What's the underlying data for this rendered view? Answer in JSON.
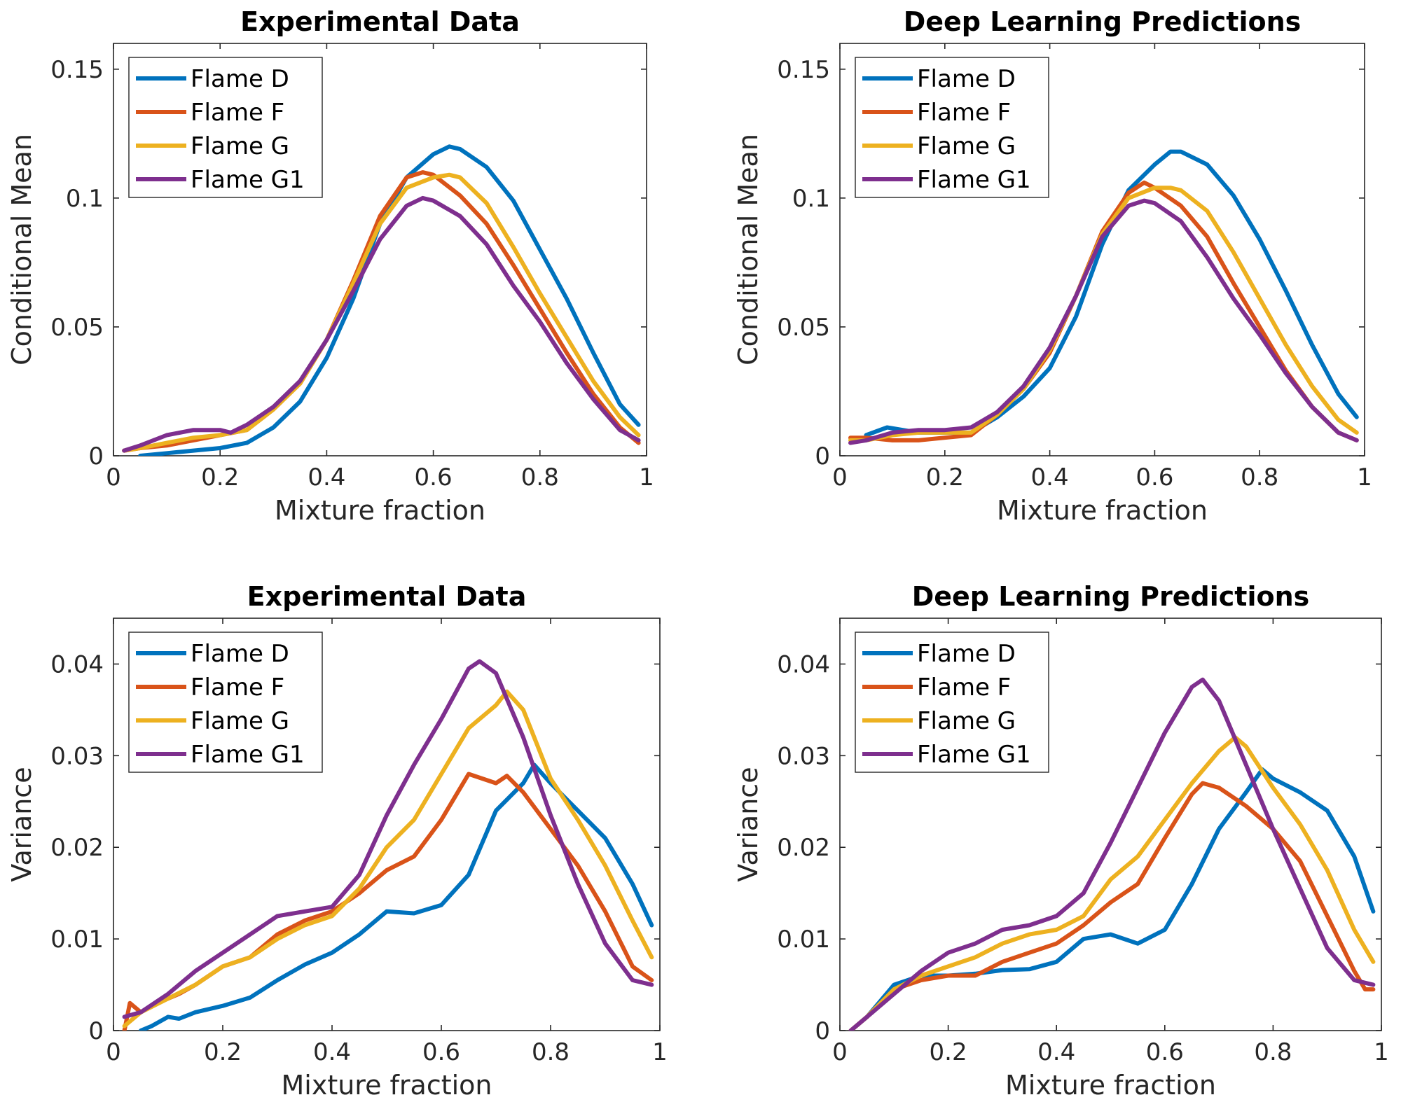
{
  "figure": {
    "colors": {
      "Flame D": "#0072BD",
      "Flame F": "#D95319",
      "Flame G": "#EDB120",
      "Flame G1": "#7E2F8E"
    }
  },
  "chart_data": [
    {
      "type": "line",
      "title": "Experimental Data",
      "xlabel": "Mixture fraction",
      "ylabel": "Conditional Mean",
      "xlim": [
        0,
        1
      ],
      "ylim": [
        0,
        0.16
      ],
      "xticks": [
        0,
        0.2,
        0.4,
        0.6,
        0.8,
        1
      ],
      "xtick_labels": [
        "0",
        "0.2",
        "0.4",
        "0.6",
        "0.8",
        "1"
      ],
      "yticks": [
        0,
        0.05,
        0.1,
        0.15
      ],
      "ytick_labels": [
        "0",
        "0.05",
        "0.1",
        "0.15"
      ],
      "legend": "top-left",
      "grid": false,
      "series": [
        {
          "name": "Flame D",
          "color": "#0072BD",
          "x": [
            0.05,
            0.1,
            0.15,
            0.2,
            0.25,
            0.3,
            0.35,
            0.4,
            0.45,
            0.5,
            0.55,
            0.6,
            0.63,
            0.65,
            0.7,
            0.75,
            0.8,
            0.85,
            0.9,
            0.95,
            0.985
          ],
          "y": [
            0.0,
            0.001,
            0.002,
            0.003,
            0.005,
            0.011,
            0.021,
            0.038,
            0.061,
            0.09,
            0.108,
            0.117,
            0.12,
            0.119,
            0.112,
            0.099,
            0.08,
            0.061,
            0.04,
            0.02,
            0.012
          ]
        },
        {
          "name": "Flame F",
          "color": "#D95319",
          "x": [
            0.02,
            0.05,
            0.1,
            0.15,
            0.2,
            0.25,
            0.3,
            0.35,
            0.4,
            0.45,
            0.5,
            0.55,
            0.58,
            0.6,
            0.65,
            0.7,
            0.75,
            0.8,
            0.85,
            0.9,
            0.95,
            0.985
          ],
          "y": [
            0.002,
            0.003,
            0.004,
            0.006,
            0.008,
            0.01,
            0.018,
            0.028,
            0.045,
            0.068,
            0.093,
            0.108,
            0.11,
            0.109,
            0.101,
            0.09,
            0.074,
            0.057,
            0.04,
            0.024,
            0.011,
            0.005
          ]
        },
        {
          "name": "Flame G",
          "color": "#EDB120",
          "x": [
            0.02,
            0.05,
            0.1,
            0.15,
            0.2,
            0.25,
            0.3,
            0.35,
            0.4,
            0.45,
            0.5,
            0.55,
            0.6,
            0.63,
            0.65,
            0.7,
            0.75,
            0.8,
            0.85,
            0.9,
            0.95,
            0.985
          ],
          "y": [
            0.002,
            0.003,
            0.005,
            0.007,
            0.008,
            0.01,
            0.018,
            0.028,
            0.045,
            0.067,
            0.09,
            0.104,
            0.108,
            0.109,
            0.108,
            0.098,
            0.081,
            0.063,
            0.046,
            0.029,
            0.015,
            0.008
          ]
        },
        {
          "name": "Flame G1",
          "color": "#7E2F8E",
          "x": [
            0.02,
            0.05,
            0.1,
            0.15,
            0.2,
            0.22,
            0.25,
            0.3,
            0.35,
            0.4,
            0.45,
            0.5,
            0.55,
            0.58,
            0.6,
            0.65,
            0.7,
            0.75,
            0.8,
            0.85,
            0.9,
            0.95,
            0.985
          ],
          "y": [
            0.002,
            0.004,
            0.008,
            0.01,
            0.01,
            0.009,
            0.012,
            0.019,
            0.029,
            0.045,
            0.064,
            0.084,
            0.097,
            0.1,
            0.099,
            0.093,
            0.082,
            0.066,
            0.052,
            0.036,
            0.022,
            0.01,
            0.006
          ]
        }
      ]
    },
    {
      "type": "line",
      "title": "Deep Learning Predictions",
      "xlabel": "Mixture fraction",
      "ylabel": "Conditional Mean",
      "xlim": [
        0,
        1
      ],
      "ylim": [
        0,
        0.16
      ],
      "xticks": [
        0,
        0.2,
        0.4,
        0.6,
        0.8,
        1
      ],
      "xtick_labels": [
        "0",
        "0.2",
        "0.4",
        "0.6",
        "0.8",
        "1"
      ],
      "yticks": [
        0,
        0.05,
        0.1,
        0.15
      ],
      "ytick_labels": [
        "0",
        "0.05",
        "0.1",
        "0.15"
      ],
      "legend": "top-left",
      "grid": false,
      "series": [
        {
          "name": "Flame D",
          "color": "#0072BD",
          "x": [
            0.05,
            0.09,
            0.15,
            0.2,
            0.25,
            0.3,
            0.35,
            0.4,
            0.45,
            0.5,
            0.55,
            0.6,
            0.63,
            0.65,
            0.7,
            0.75,
            0.8,
            0.85,
            0.9,
            0.95,
            0.985
          ],
          "y": [
            0.008,
            0.011,
            0.009,
            0.009,
            0.009,
            0.015,
            0.023,
            0.034,
            0.054,
            0.082,
            0.103,
            0.113,
            0.118,
            0.118,
            0.113,
            0.101,
            0.084,
            0.064,
            0.043,
            0.024,
            0.015
          ]
        },
        {
          "name": "Flame F",
          "color": "#D95319",
          "x": [
            0.02,
            0.05,
            0.1,
            0.15,
            0.2,
            0.25,
            0.3,
            0.35,
            0.4,
            0.45,
            0.5,
            0.55,
            0.58,
            0.6,
            0.65,
            0.7,
            0.75,
            0.8,
            0.85,
            0.9,
            0.95,
            0.985
          ],
          "y": [
            0.007,
            0.007,
            0.006,
            0.006,
            0.007,
            0.008,
            0.016,
            0.026,
            0.04,
            0.062,
            0.087,
            0.102,
            0.106,
            0.104,
            0.097,
            0.085,
            0.067,
            0.05,
            0.033,
            0.019,
            0.009,
            0.006
          ]
        },
        {
          "name": "Flame G",
          "color": "#EDB120",
          "x": [
            0.02,
            0.05,
            0.1,
            0.15,
            0.2,
            0.25,
            0.3,
            0.35,
            0.4,
            0.45,
            0.5,
            0.55,
            0.6,
            0.63,
            0.65,
            0.7,
            0.75,
            0.8,
            0.85,
            0.9,
            0.95,
            0.985
          ],
          "y": [
            0.006,
            0.006,
            0.008,
            0.009,
            0.009,
            0.009,
            0.016,
            0.026,
            0.041,
            0.062,
            0.086,
            0.1,
            0.104,
            0.104,
            0.103,
            0.095,
            0.079,
            0.061,
            0.043,
            0.027,
            0.014,
            0.009
          ]
        },
        {
          "name": "Flame G1",
          "color": "#7E2F8E",
          "x": [
            0.02,
            0.05,
            0.1,
            0.15,
            0.2,
            0.25,
            0.3,
            0.35,
            0.4,
            0.45,
            0.5,
            0.55,
            0.58,
            0.6,
            0.65,
            0.7,
            0.75,
            0.8,
            0.85,
            0.9,
            0.95,
            0.985
          ],
          "y": [
            0.005,
            0.006,
            0.009,
            0.01,
            0.01,
            0.011,
            0.017,
            0.027,
            0.042,
            0.062,
            0.085,
            0.097,
            0.099,
            0.098,
            0.091,
            0.077,
            0.061,
            0.047,
            0.032,
            0.019,
            0.009,
            0.006
          ]
        }
      ]
    },
    {
      "type": "line",
      "title": "Experimental Data",
      "xlabel": "Mixture fraction",
      "ylabel": "Variance",
      "xlim": [
        0,
        1
      ],
      "ylim": [
        0,
        0.045
      ],
      "xticks": [
        0,
        0.2,
        0.4,
        0.6,
        0.8,
        1
      ],
      "xtick_labels": [
        "0",
        "0.2",
        "0.4",
        "0.6",
        "0.8",
        "1"
      ],
      "yticks": [
        0,
        0.01,
        0.02,
        0.03,
        0.04
      ],
      "ytick_labels": [
        "0",
        "0.01",
        "0.02",
        "0.03",
        "0.04"
      ],
      "legend": "top-left",
      "grid": false,
      "series": [
        {
          "name": "Flame D",
          "color": "#0072BD",
          "x": [
            0.05,
            0.07,
            0.1,
            0.12,
            0.15,
            0.2,
            0.25,
            0.3,
            0.35,
            0.4,
            0.45,
            0.5,
            0.55,
            0.6,
            0.65,
            0.7,
            0.75,
            0.77,
            0.8,
            0.85,
            0.9,
            0.95,
            0.985
          ],
          "y": [
            0.0,
            0.0005,
            0.0015,
            0.0013,
            0.002,
            0.0027,
            0.0036,
            0.0055,
            0.0072,
            0.0085,
            0.0105,
            0.013,
            0.0128,
            0.0137,
            0.017,
            0.024,
            0.027,
            0.029,
            0.027,
            0.024,
            0.021,
            0.016,
            0.0115
          ]
        },
        {
          "name": "Flame F",
          "color": "#D95319",
          "x": [
            0.02,
            0.03,
            0.05,
            0.08,
            0.1,
            0.12,
            0.15,
            0.2,
            0.25,
            0.3,
            0.35,
            0.4,
            0.45,
            0.5,
            0.55,
            0.6,
            0.65,
            0.7,
            0.72,
            0.75,
            0.8,
            0.85,
            0.9,
            0.95,
            0.985
          ],
          "y": [
            0.0,
            0.003,
            0.002,
            0.003,
            0.0035,
            0.004,
            0.005,
            0.007,
            0.008,
            0.0105,
            0.012,
            0.013,
            0.015,
            0.0175,
            0.019,
            0.023,
            0.028,
            0.027,
            0.0278,
            0.026,
            0.022,
            0.018,
            0.013,
            0.007,
            0.0055
          ]
        },
        {
          "name": "Flame G",
          "color": "#EDB120",
          "x": [
            0.02,
            0.05,
            0.1,
            0.15,
            0.2,
            0.25,
            0.3,
            0.35,
            0.4,
            0.45,
            0.5,
            0.55,
            0.6,
            0.65,
            0.7,
            0.72,
            0.75,
            0.8,
            0.85,
            0.9,
            0.95,
            0.985
          ],
          "y": [
            0.0005,
            0.002,
            0.0035,
            0.005,
            0.007,
            0.008,
            0.01,
            0.0115,
            0.0125,
            0.0155,
            0.02,
            0.023,
            0.028,
            0.033,
            0.0355,
            0.037,
            0.035,
            0.0275,
            0.023,
            0.018,
            0.012,
            0.008
          ]
        },
        {
          "name": "Flame G1",
          "color": "#7E2F8E",
          "x": [
            0.02,
            0.05,
            0.1,
            0.15,
            0.2,
            0.25,
            0.3,
            0.35,
            0.4,
            0.45,
            0.5,
            0.55,
            0.6,
            0.65,
            0.67,
            0.7,
            0.75,
            0.8,
            0.85,
            0.9,
            0.95,
            0.985
          ],
          "y": [
            0.0015,
            0.002,
            0.004,
            0.0065,
            0.0085,
            0.0105,
            0.0125,
            0.013,
            0.0135,
            0.017,
            0.0235,
            0.029,
            0.034,
            0.0395,
            0.0403,
            0.039,
            0.032,
            0.0235,
            0.016,
            0.0095,
            0.0055,
            0.005
          ]
        }
      ]
    },
    {
      "type": "line",
      "title": "Deep Learning Predictions",
      "xlabel": "Mixture fraction",
      "ylabel": "Variance",
      "xlim": [
        0,
        1
      ],
      "ylim": [
        0,
        0.045
      ],
      "xticks": [
        0,
        0.2,
        0.4,
        0.6,
        0.8,
        1
      ],
      "xtick_labels": [
        "0",
        "0.2",
        "0.4",
        "0.6",
        "0.8",
        "1"
      ],
      "yticks": [
        0,
        0.01,
        0.02,
        0.03,
        0.04
      ],
      "ytick_labels": [
        "0",
        "0.01",
        "0.02",
        "0.03",
        "0.04"
      ],
      "legend": "top-left",
      "grid": false,
      "series": [
        {
          "name": "Flame D",
          "color": "#0072BD",
          "x": [
            0.02,
            0.05,
            0.1,
            0.15,
            0.2,
            0.25,
            0.3,
            0.35,
            0.4,
            0.45,
            0.5,
            0.55,
            0.6,
            0.65,
            0.7,
            0.75,
            0.78,
            0.8,
            0.85,
            0.9,
            0.95,
            0.985
          ],
          "y": [
            0.0,
            0.0015,
            0.005,
            0.006,
            0.006,
            0.0062,
            0.0066,
            0.0067,
            0.0075,
            0.01,
            0.0105,
            0.0095,
            0.011,
            0.016,
            0.022,
            0.026,
            0.0285,
            0.0275,
            0.026,
            0.024,
            0.019,
            0.013
          ]
        },
        {
          "name": "Flame F",
          "color": "#D95319",
          "x": [
            0.02,
            0.05,
            0.1,
            0.15,
            0.2,
            0.25,
            0.3,
            0.35,
            0.4,
            0.45,
            0.5,
            0.55,
            0.6,
            0.65,
            0.67,
            0.7,
            0.75,
            0.8,
            0.85,
            0.9,
            0.95,
            0.97,
            0.985
          ],
          "y": [
            0.0,
            0.0015,
            0.0045,
            0.0055,
            0.006,
            0.006,
            0.0075,
            0.0085,
            0.0095,
            0.0115,
            0.014,
            0.016,
            0.021,
            0.0258,
            0.027,
            0.0265,
            0.0245,
            0.022,
            0.0185,
            0.0125,
            0.0065,
            0.0045,
            0.0045
          ]
        },
        {
          "name": "Flame G",
          "color": "#EDB120",
          "x": [
            0.02,
            0.05,
            0.1,
            0.15,
            0.2,
            0.25,
            0.3,
            0.35,
            0.4,
            0.45,
            0.5,
            0.55,
            0.6,
            0.65,
            0.7,
            0.73,
            0.75,
            0.8,
            0.85,
            0.9,
            0.95,
            0.985
          ],
          "y": [
            0.0,
            0.0015,
            0.0045,
            0.006,
            0.007,
            0.008,
            0.0095,
            0.0105,
            0.011,
            0.0125,
            0.0165,
            0.019,
            0.023,
            0.027,
            0.0305,
            0.032,
            0.031,
            0.0265,
            0.0225,
            0.0175,
            0.011,
            0.0075
          ]
        },
        {
          "name": "Flame G1",
          "color": "#7E2F8E",
          "x": [
            0.02,
            0.05,
            0.1,
            0.15,
            0.2,
            0.25,
            0.3,
            0.35,
            0.4,
            0.45,
            0.5,
            0.55,
            0.6,
            0.65,
            0.67,
            0.7,
            0.75,
            0.8,
            0.85,
            0.9,
            0.95,
            0.985
          ],
          "y": [
            0.0,
            0.0015,
            0.004,
            0.0065,
            0.0085,
            0.0095,
            0.011,
            0.0115,
            0.0125,
            0.015,
            0.0205,
            0.0265,
            0.0325,
            0.0375,
            0.0383,
            0.036,
            0.029,
            0.022,
            0.0155,
            0.009,
            0.0055,
            0.005
          ]
        }
      ]
    }
  ]
}
